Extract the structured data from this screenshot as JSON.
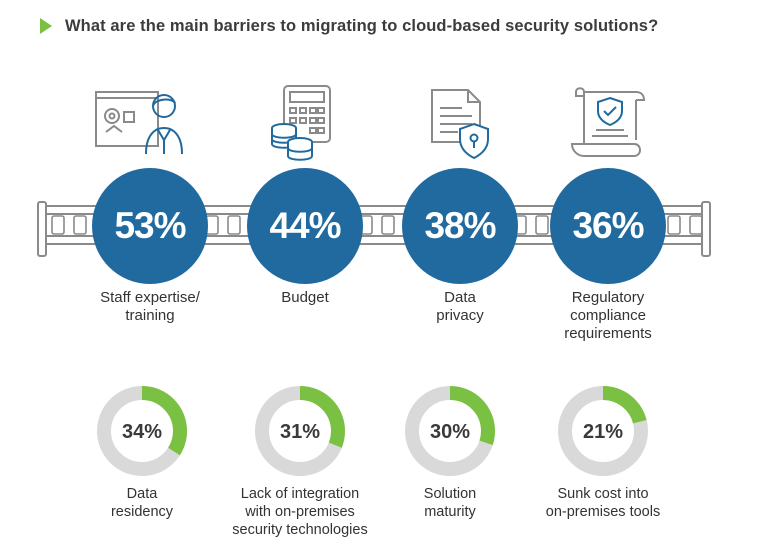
{
  "title": "What are the main barriers to migrating to cloud-based security solutions?",
  "colors": {
    "primary_blue": "#216a9f",
    "accent_green": "#7ac143",
    "donut_track": "#d9d9d9",
    "icon_gray": "#8a8a8a",
    "icon_blue": "#216a9f"
  },
  "icons": [
    "trainer-presentation-icon",
    "calculator-coins-icon",
    "document-shield-icon",
    "certificate-shield-icon"
  ],
  "chart_data": [
    {
      "type": "bar",
      "categories": [
        "Staff expertise/ training",
        "Budget",
        "Data privacy",
        "Regulatory compliance requirements"
      ],
      "values": [
        53,
        44,
        38,
        36
      ],
      "value_labels": [
        "53%",
        "44%",
        "38%",
        "36%"
      ],
      "label_lines": [
        [
          "Staff expertise/",
          "training"
        ],
        [
          "Budget"
        ],
        [
          "Data",
          "privacy"
        ],
        [
          "Regulatory",
          "compliance",
          "requirements"
        ]
      ]
    },
    {
      "type": "pie",
      "categories": [
        "Data residency",
        "Lack of integration with on-premises security technologies",
        "Solution maturity",
        "Sunk cost into on-premises tools"
      ],
      "values": [
        34,
        31,
        30,
        21
      ],
      "value_labels": [
        "34%",
        "31%",
        "30%",
        "21%"
      ],
      "label_lines": [
        [
          "Data",
          "residency"
        ],
        [
          "Lack of integration",
          "with on-premises",
          "security technologies"
        ],
        [
          "Solution",
          "maturity"
        ],
        [
          "Sunk cost into",
          "on-premises tools"
        ]
      ]
    }
  ]
}
